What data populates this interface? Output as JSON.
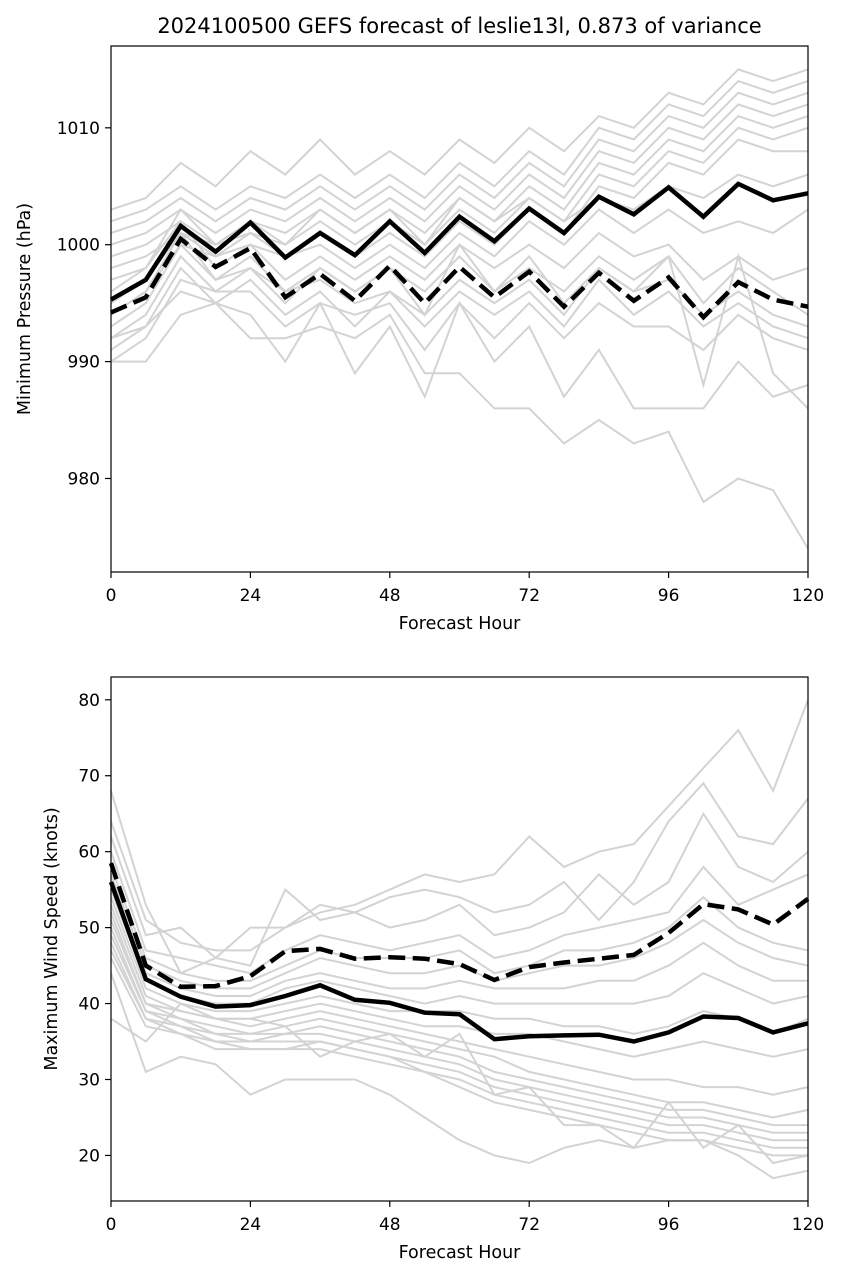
{
  "colors": {
    "member": "#d3d3d3",
    "mean": "#000000"
  },
  "chart_data": [
    {
      "type": "line",
      "title": "2024100500 GEFS forecast of leslie13l, 0.873 of variance",
      "xlabel": "Forecast Hour",
      "ylabel": "Minimum Pressure (hPa)",
      "xlim": [
        0,
        120
      ],
      "ylim": [
        972,
        1017
      ],
      "xticks": [
        0,
        24,
        48,
        72,
        96,
        120
      ],
      "yticks": [
        980,
        990,
        1000,
        1010
      ],
      "grid": false,
      "x": [
        0,
        6,
        12,
        18,
        24,
        30,
        36,
        42,
        48,
        54,
        60,
        66,
        72,
        78,
        84,
        90,
        96,
        102,
        108,
        114,
        120
      ],
      "series": [
        {
          "style": "solid",
          "values": [
            995.3,
            997.0,
            1001.6,
            999.4,
            1001.9,
            998.9,
            1001.0,
            999.1,
            1002.0,
            999.3,
            1002.4,
            1000.3,
            1003.1,
            1001.0,
            1004.1,
            1002.6,
            1004.9,
            1002.4,
            1005.2,
            1003.8,
            1004.4
          ]
        },
        {
          "style": "dashed",
          "values": [
            994.2,
            995.5,
            1000.5,
            998.1,
            999.7,
            995.5,
            997.5,
            995.2,
            998.2,
            995.0,
            998.1,
            995.5,
            997.7,
            994.7,
            997.6,
            995.2,
            997.2,
            993.8,
            996.8,
            995.3,
            994.7
          ]
        },
        {
          "style": "member",
          "values": [
            1003,
            1004,
            1007,
            1005,
            1008,
            1006,
            1009,
            1006,
            1008,
            1006,
            1009,
            1007,
            1010,
            1008,
            1011,
            1010,
            1013,
            1012,
            1015,
            1014,
            1015
          ]
        },
        {
          "style": "member",
          "values": [
            1002,
            1003,
            1005,
            1003,
            1005,
            1004,
            1006,
            1004,
            1006,
            1004,
            1007,
            1005,
            1008,
            1006,
            1010,
            1009,
            1012,
            1011,
            1014,
            1013,
            1014
          ]
        },
        {
          "style": "member",
          "values": [
            1001,
            1002,
            1004,
            1002,
            1004,
            1003,
            1005,
            1003,
            1005,
            1003,
            1006,
            1004,
            1007,
            1005,
            1009,
            1008,
            1011,
            1010,
            1013,
            1012,
            1013
          ]
        },
        {
          "style": "member",
          "values": [
            1000,
            1001,
            1003,
            1001,
            1003,
            1002,
            1004,
            1002,
            1004,
            1002,
            1005,
            1003,
            1006,
            1004,
            1008,
            1007,
            1010,
            1009,
            1012,
            1011,
            1012
          ]
        },
        {
          "style": "member",
          "values": [
            999,
            1000,
            1002,
            1000,
            1002,
            1001,
            1003,
            1001,
            1003,
            1001,
            1004,
            1002,
            1005,
            1003,
            1007,
            1006,
            1009,
            1008,
            1011,
            1010,
            1011
          ]
        },
        {
          "style": "member",
          "values": [
            998,
            999,
            1001,
            999,
            1001,
            1000,
            1002,
            1000,
            1002,
            1000,
            1003,
            1001,
            1004,
            1002,
            1006,
            1005,
            1008,
            1007,
            1010,
            1009,
            1010
          ]
        },
        {
          "style": "member",
          "values": [
            997,
            998,
            1002,
            998,
            1000,
            999,
            1001,
            999,
            1001,
            999,
            1002,
            1000,
            1003,
            1001,
            1005,
            1004,
            1007,
            1006,
            1009,
            1008,
            1008
          ]
        },
        {
          "style": "member",
          "values": [
            996,
            998,
            1003,
            1000,
            1002,
            1000,
            1003,
            1001,
            1003,
            1000,
            1004,
            1002,
            1004,
            1002,
            1004,
            1003,
            1005,
            1004,
            1006,
            1005,
            1006
          ]
        },
        {
          "style": "member",
          "values": [
            995,
            997,
            1001,
            1000,
            1001,
            999,
            1000,
            998,
            1000,
            998,
            1001,
            999,
            1002,
            1000,
            1003,
            1001,
            1003,
            1001,
            1002,
            1001,
            1003
          ]
        },
        {
          "style": "member",
          "values": [
            994,
            996,
            1000,
            999,
            1000,
            997,
            999,
            997,
            999,
            997,
            1000,
            998,
            1000,
            998,
            1001,
            999,
            1000,
            997,
            999,
            997,
            998
          ]
        },
        {
          "style": "member",
          "values": [
            993,
            995,
            1000,
            997,
            998,
            995,
            998,
            996,
            998,
            996,
            999,
            996,
            998,
            996,
            999,
            997,
            999,
            995,
            998,
            996,
            994
          ]
        },
        {
          "style": "member",
          "values": [
            992,
            994,
            999,
            996,
            998,
            996,
            997,
            995,
            996,
            994,
            997,
            995,
            997,
            994,
            998,
            996,
            997,
            994,
            996,
            994,
            993
          ]
        },
        {
          "style": "member",
          "values": [
            991,
            993,
            998,
            995,
            997,
            994,
            996,
            993,
            996,
            993,
            996,
            994,
            996,
            993,
            997,
            994,
            996,
            993,
            995,
            993,
            992
          ]
        },
        {
          "style": "member",
          "values": [
            990,
            992,
            997,
            996,
            996,
            993,
            995,
            994,
            995,
            991,
            995,
            992,
            995,
            992,
            995,
            993,
            993,
            991,
            994,
            992,
            991
          ]
        },
        {
          "style": "member",
          "values": [
            990,
            990,
            994,
            995,
            992,
            992,
            993,
            992,
            994,
            989,
            989,
            986,
            986,
            983,
            985,
            983,
            984,
            978,
            980,
            979,
            974
          ]
        },
        {
          "style": "member",
          "values": [
            992,
            993,
            996,
            995,
            994,
            990,
            995,
            989,
            993,
            987,
            995,
            990,
            993,
            987,
            991,
            986,
            986,
            986,
            990,
            987,
            988
          ]
        },
        {
          "style": "member",
          "values": [
            994,
            996,
            1001,
            997,
            999,
            996,
            998,
            996,
            998,
            994,
            1000,
            996,
            999,
            995,
            998,
            996,
            999,
            988,
            999,
            989,
            986
          ]
        }
      ]
    },
    {
      "type": "line",
      "title": "",
      "xlabel": "Forecast Hour",
      "ylabel": "Maximum Wind Speed (knots)",
      "xlim": [
        0,
        120
      ],
      "ylim": [
        14,
        83
      ],
      "xticks": [
        0,
        24,
        48,
        72,
        96,
        120
      ],
      "yticks": [
        20,
        30,
        40,
        50,
        60,
        70,
        80
      ],
      "grid": false,
      "x": [
        0,
        6,
        12,
        18,
        24,
        30,
        36,
        42,
        48,
        54,
        60,
        66,
        72,
        78,
        84,
        90,
        96,
        102,
        108,
        114,
        120
      ],
      "series": [
        {
          "style": "solid",
          "values": [
            56.0,
            43.2,
            40.9,
            39.6,
            39.8,
            41.0,
            42.4,
            40.5,
            40.1,
            38.8,
            38.6,
            35.3,
            35.7,
            35.8,
            35.9,
            35.0,
            36.2,
            38.3,
            38.1,
            36.2,
            37.4
          ]
        },
        {
          "style": "dashed",
          "values": [
            58.5,
            45.0,
            42.2,
            42.3,
            43.6,
            46.9,
            47.2,
            45.9,
            46.1,
            45.9,
            45.2,
            43.1,
            44.8,
            45.4,
            45.9,
            46.4,
            49.3,
            53.1,
            52.4,
            50.4,
            53.8
          ]
        },
        {
          "style": "member",
          "values": [
            68,
            53,
            44,
            46,
            50,
            50,
            52,
            53,
            55,
            57,
            56,
            57,
            62,
            58,
            60,
            61,
            66,
            71,
            76,
            68,
            80
          ]
        },
        {
          "style": "member",
          "values": [
            64,
            51,
            48,
            47,
            47,
            50,
            53,
            52,
            54,
            55,
            54,
            52,
            53,
            56,
            51,
            56,
            64,
            69,
            62,
            61,
            67
          ]
        },
        {
          "style": "member",
          "values": [
            62,
            49,
            50,
            46,
            45,
            55,
            51,
            52,
            50,
            51,
            53,
            49,
            50,
            52,
            57,
            53,
            56,
            65,
            58,
            56,
            60
          ]
        },
        {
          "style": "member",
          "values": [
            60,
            47,
            46,
            45,
            44,
            47,
            49,
            48,
            47,
            48,
            49,
            46,
            47,
            49,
            50,
            51,
            52,
            58,
            53,
            55,
            57
          ]
        },
        {
          "style": "member",
          "values": [
            58,
            46,
            44,
            43,
            43,
            45,
            47,
            46,
            46,
            46,
            47,
            44,
            45,
            47,
            47,
            48,
            50,
            54,
            50,
            48,
            47
          ]
        },
        {
          "style": "member",
          "values": [
            57,
            45,
            43,
            42,
            42,
            44,
            46,
            45,
            44,
            44,
            45,
            43,
            44,
            45,
            45,
            46,
            48,
            51,
            48,
            46,
            45
          ]
        },
        {
          "style": "member",
          "values": [
            56,
            44,
            42,
            41,
            41,
            43,
            44,
            43,
            42,
            42,
            43,
            42,
            42,
            42,
            43,
            43,
            45,
            48,
            45,
            43,
            43
          ]
        },
        {
          "style": "member",
          "values": [
            55,
            43,
            41,
            40,
            40,
            42,
            43,
            42,
            41,
            40,
            41,
            40,
            40,
            40,
            40,
            40,
            41,
            44,
            42,
            40,
            41
          ]
        },
        {
          "style": "member",
          "values": [
            54,
            42,
            40,
            39,
            39,
            40,
            41,
            40,
            39,
            39,
            39,
            38,
            38,
            37,
            37,
            36,
            37,
            39,
            38,
            36,
            38
          ]
        },
        {
          "style": "member",
          "values": [
            53,
            41,
            39,
            38,
            38,
            39,
            40,
            39,
            38,
            37,
            37,
            36,
            36,
            35,
            34,
            33,
            34,
            35,
            34,
            33,
            34
          ]
        },
        {
          "style": "member",
          "values": [
            52,
            40,
            39,
            38,
            37,
            38,
            39,
            38,
            37,
            36,
            35,
            34,
            33,
            32,
            31,
            30,
            30,
            29,
            29,
            28,
            29
          ]
        },
        {
          "style": "member",
          "values": [
            51,
            40,
            38,
            37,
            36,
            37,
            38,
            37,
            36,
            35,
            34,
            33,
            31,
            30,
            29,
            28,
            27,
            27,
            26,
            25,
            26
          ]
        },
        {
          "style": "member",
          "values": [
            50,
            39,
            38,
            36,
            36,
            36,
            37,
            36,
            35,
            34,
            33,
            31,
            30,
            29,
            28,
            27,
            26,
            26,
            25,
            24,
            24
          ]
        },
        {
          "style": "member",
          "values": [
            49,
            39,
            37,
            36,
            35,
            36,
            36,
            35,
            34,
            33,
            32,
            30,
            29,
            28,
            27,
            26,
            25,
            25,
            24,
            23,
            23
          ]
        },
        {
          "style": "member",
          "values": [
            48,
            38,
            37,
            35,
            35,
            35,
            35,
            34,
            33,
            32,
            31,
            29,
            28,
            27,
            26,
            25,
            24,
            24,
            23,
            22,
            22
          ]
        },
        {
          "style": "member",
          "values": [
            47,
            38,
            36,
            35,
            34,
            34,
            35,
            34,
            33,
            31,
            30,
            28,
            27,
            26,
            25,
            24,
            23,
            23,
            22,
            21,
            21
          ]
        },
        {
          "style": "member",
          "values": [
            46,
            37,
            36,
            34,
            34,
            34,
            34,
            33,
            32,
            31,
            29,
            27,
            26,
            25,
            24,
            23,
            22,
            22,
            21,
            20,
            20
          ]
        },
        {
          "style": "member",
          "values": [
            44,
            31,
            33,
            32,
            28,
            30,
            30,
            30,
            28,
            25,
            22,
            20,
            19,
            21,
            22,
            21,
            22,
            22,
            20,
            17,
            18
          ]
        },
        {
          "style": "member",
          "values": [
            38,
            35,
            40,
            38,
            38,
            37,
            33,
            35,
            36,
            33,
            36,
            28,
            29,
            24,
            24,
            21,
            27,
            21,
            24,
            19,
            20
          ]
        }
      ]
    }
  ]
}
